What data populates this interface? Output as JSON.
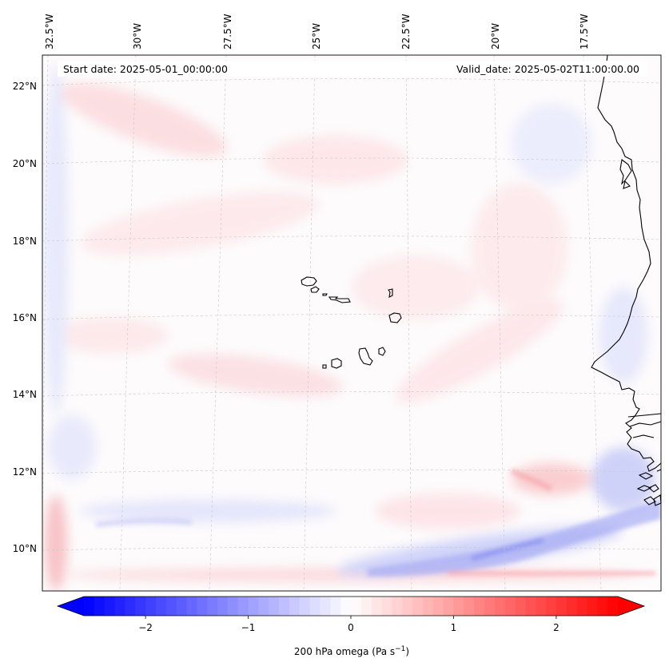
{
  "header": {
    "start_date": "Start date: 2025-05-01_00:00:00",
    "valid_date": "Valid_date: 2025-05-02T11:00:00.00"
  },
  "map": {
    "lon_labels": [
      "32.5°W",
      "30°W",
      "27.5°W",
      "25°W",
      "22.5°W",
      "20°W",
      "17.5°W"
    ],
    "lat_labels": [
      "22°N",
      "20°N",
      "18°N",
      "16°N",
      "14°N",
      "12°N",
      "10°N"
    ],
    "field": "200 hPa omega",
    "features": [
      "coastline",
      "cape-verde-islands",
      "gridlines"
    ]
  },
  "colorbar": {
    "label": "200 hPa omega (Pa s",
    "label_exponent": "−1",
    "label_close": ")",
    "ticks": [
      "−2",
      "−1",
      "0",
      "1",
      "2"
    ],
    "range": [
      -2.6,
      2.6
    ],
    "cmap": "bwr",
    "color_min": "#0000ff",
    "color_mid": "#ffffff",
    "color_max": "#ff0000"
  }
}
